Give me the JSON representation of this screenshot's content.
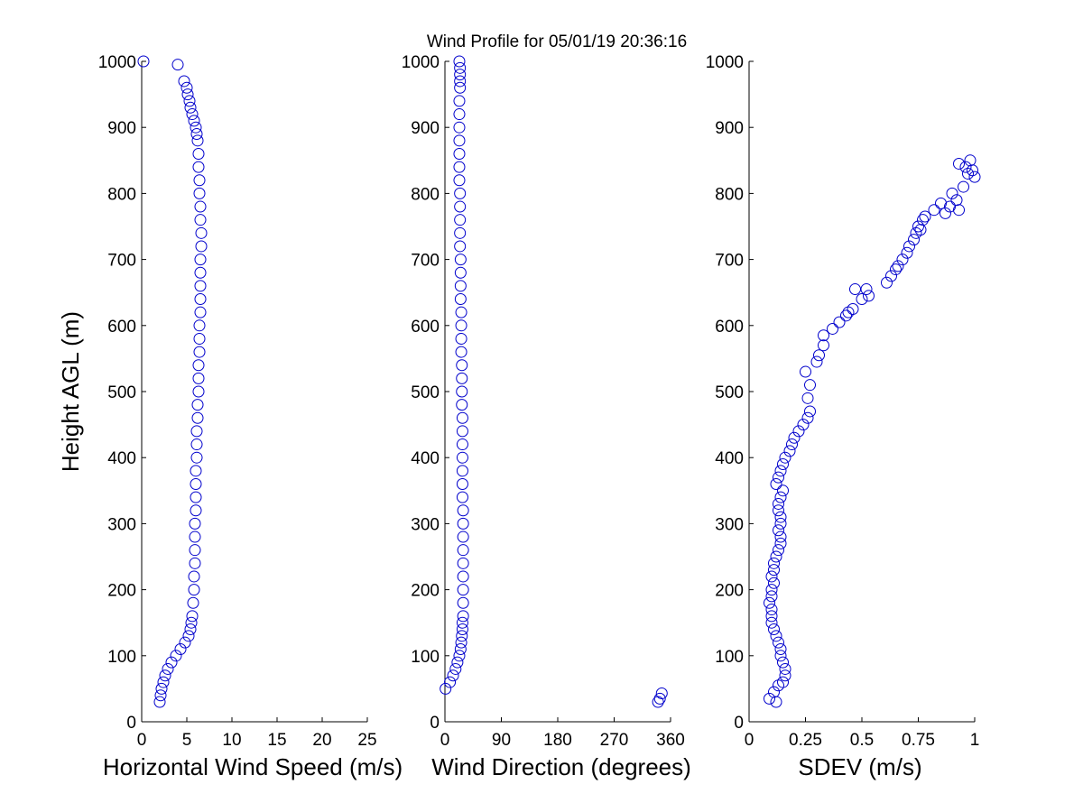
{
  "title": "Wind Profile for  05/01/19 20:36:16",
  "chart_data": [
    {
      "type": "scatter",
      "xlabel": "Horizontal Wind Speed (m/s)",
      "ylabel": "Height AGL (m)",
      "xlim": [
        0,
        25
      ],
      "ylim": [
        0,
        1000
      ],
      "xticks": [
        "0",
        "5",
        "10",
        "15",
        "20",
        "25"
      ],
      "xtick_values": [
        0,
        5,
        10,
        15,
        20,
        25
      ],
      "yticks": [
        "0",
        "100",
        "200",
        "300",
        "400",
        "500",
        "600",
        "700",
        "800",
        "900",
        "1000"
      ],
      "ytick_values": [
        0,
        100,
        200,
        300,
        400,
        500,
        600,
        700,
        800,
        900,
        1000
      ],
      "grid": false,
      "marker": "circle-open",
      "color": "#0000cc",
      "x": [
        2.0,
        2.1,
        2.2,
        2.4,
        2.6,
        2.9,
        3.3,
        3.8,
        4.3,
        4.8,
        5.2,
        5.4,
        5.5,
        5.6,
        5.7,
        5.8,
        5.8,
        5.9,
        5.9,
        5.9,
        5.9,
        6.0,
        6.0,
        6.0,
        6.0,
        6.1,
        6.1,
        6.1,
        6.2,
        6.2,
        6.3,
        6.3,
        6.3,
        6.4,
        6.4,
        6.4,
        6.5,
        6.5,
        6.5,
        6.5,
        6.5,
        6.6,
        6.6,
        6.5,
        6.5,
        6.4,
        6.4,
        6.3,
        6.3,
        6.2,
        6.1,
        6.0,
        5.8,
        5.6,
        5.4,
        5.3,
        5.1,
        5.0,
        4.7,
        4.0,
        0.2
      ],
      "y": [
        30,
        40,
        50,
        60,
        70,
        80,
        90,
        100,
        110,
        120,
        130,
        140,
        150,
        160,
        180,
        200,
        220,
        240,
        260,
        280,
        300,
        320,
        340,
        360,
        380,
        400,
        420,
        440,
        460,
        480,
        500,
        520,
        540,
        560,
        580,
        600,
        620,
        640,
        660,
        680,
        700,
        720,
        740,
        760,
        780,
        800,
        820,
        840,
        860,
        880,
        890,
        900,
        910,
        920,
        930,
        940,
        950,
        960,
        970,
        995,
        1000
      ]
    },
    {
      "type": "scatter",
      "xlabel": "Wind Direction (degrees)",
      "xlim": [
        0,
        360
      ],
      "ylim": [
        0,
        1000
      ],
      "xticks": [
        "0",
        "90",
        "180",
        "270",
        "360"
      ],
      "xtick_values": [
        0,
        90,
        180,
        270,
        360
      ],
      "yticks": [
        "0",
        "100",
        "200",
        "300",
        "400",
        "500",
        "600",
        "700",
        "800",
        "900",
        "1000"
      ],
      "ytick_values": [
        0,
        100,
        200,
        300,
        400,
        500,
        600,
        700,
        800,
        900,
        1000
      ],
      "grid": false,
      "marker": "circle-open",
      "color": "#0000cc",
      "x": [
        1,
        8,
        13,
        17,
        20,
        23,
        25,
        26,
        27,
        28,
        28,
        29,
        29,
        29,
        29,
        29,
        29,
        29,
        29,
        29,
        28,
        28,
        28,
        28,
        28,
        28,
        28,
        27,
        27,
        27,
        27,
        26,
        26,
        26,
        26,
        25,
        25,
        25,
        25,
        24,
        24,
        24,
        24,
        24,
        23,
        23,
        23,
        23,
        23,
        23,
        23,
        24,
        24,
        24,
        24,
        23,
        340,
        343,
        346
      ],
      "y": [
        50,
        60,
        70,
        80,
        90,
        100,
        110,
        120,
        130,
        140,
        150,
        160,
        180,
        200,
        220,
        240,
        260,
        280,
        300,
        320,
        340,
        360,
        380,
        400,
        420,
        440,
        460,
        480,
        500,
        520,
        540,
        560,
        580,
        600,
        620,
        640,
        660,
        680,
        700,
        720,
        740,
        760,
        780,
        800,
        820,
        840,
        860,
        880,
        900,
        920,
        940,
        960,
        970,
        980,
        990,
        1000,
        30,
        35,
        43
      ]
    },
    {
      "type": "scatter",
      "xlabel": "SDEV  (m/s)",
      "xlim": [
        0,
        1
      ],
      "ylim": [
        0,
        1000
      ],
      "xticks": [
        "0",
        "0.25",
        "0.5",
        "0.75",
        "1"
      ],
      "xtick_values": [
        0,
        0.25,
        0.5,
        0.75,
        1
      ],
      "yticks": [
        "0",
        "100",
        "200",
        "300",
        "400",
        "500",
        "600",
        "700",
        "800",
        "900",
        "1000"
      ],
      "ytick_values": [
        0,
        100,
        200,
        300,
        400,
        500,
        600,
        700,
        800,
        900,
        1000
      ],
      "grid": false,
      "marker": "circle-open",
      "color": "#0000cc",
      "x": [
        0.09,
        0.12,
        0.11,
        0.13,
        0.15,
        0.16,
        0.16,
        0.15,
        0.14,
        0.14,
        0.13,
        0.12,
        0.11,
        0.1,
        0.1,
        0.1,
        0.09,
        0.1,
        0.1,
        0.11,
        0.1,
        0.11,
        0.11,
        0.12,
        0.13,
        0.14,
        0.14,
        0.13,
        0.14,
        0.14,
        0.13,
        0.13,
        0.14,
        0.15,
        0.12,
        0.13,
        0.14,
        0.15,
        0.16,
        0.18,
        0.19,
        0.2,
        0.22,
        0.24,
        0.26,
        0.27,
        0.26,
        0.27,
        0.25,
        0.3,
        0.31,
        0.33,
        0.33,
        0.37,
        0.4,
        0.43,
        0.44,
        0.46,
        0.5,
        0.52,
        0.53,
        0.47,
        0.61,
        0.63,
        0.65,
        0.66,
        0.68,
        0.7,
        0.71,
        0.73,
        0.74,
        0.76,
        0.75,
        0.77,
        0.78,
        0.82,
        0.85,
        0.87,
        0.89,
        0.9,
        0.92,
        0.93,
        0.95,
        0.97,
        0.96,
        0.98,
        1.0,
        0.99,
        0.93
      ],
      "y": [
        35,
        30,
        45,
        55,
        60,
        70,
        80,
        90,
        100,
        110,
        120,
        130,
        140,
        150,
        160,
        170,
        180,
        190,
        200,
        210,
        220,
        230,
        240,
        250,
        260,
        270,
        280,
        290,
        300,
        310,
        320,
        330,
        340,
        350,
        360,
        370,
        380,
        390,
        400,
        410,
        420,
        430,
        440,
        450,
        460,
        470,
        490,
        510,
        530,
        545,
        555,
        570,
        585,
        595,
        605,
        615,
        620,
        625,
        640,
        655,
        645,
        655,
        665,
        675,
        685,
        690,
        700,
        710,
        720,
        730,
        740,
        745,
        750,
        760,
        765,
        775,
        785,
        770,
        780,
        800,
        790,
        775,
        810,
        830,
        840,
        850,
        825,
        835,
        845
      ]
    }
  ]
}
